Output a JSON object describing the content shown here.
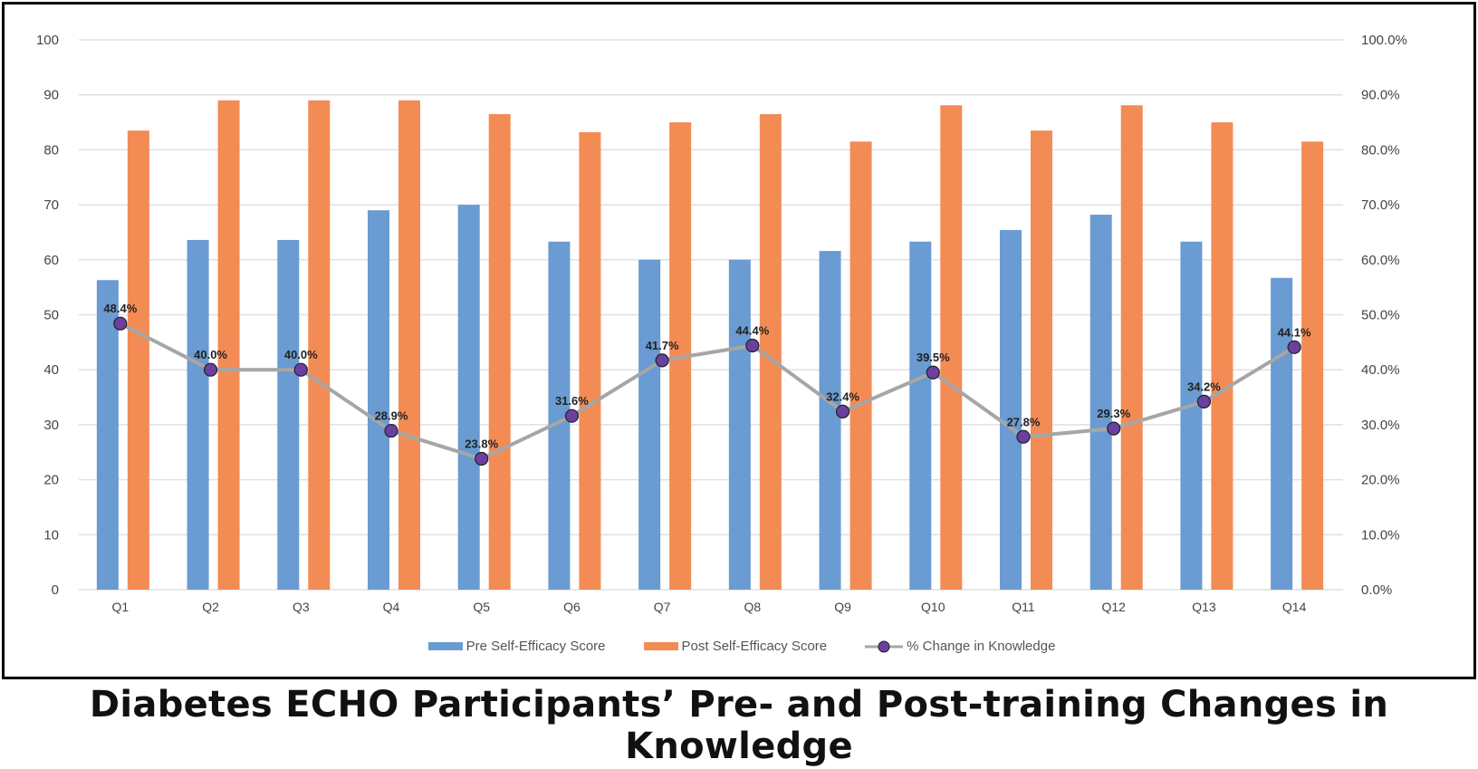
{
  "chart_data": {
    "type": "bar",
    "title": "Diabetes ECHO Participants’ Pre- and Post-training Changes in Knowledge",
    "categories": [
      "Q1",
      "Q2",
      "Q3",
      "Q4",
      "Q5",
      "Q6",
      "Q7",
      "Q8",
      "Q9",
      "Q10",
      "Q11",
      "Q12",
      "Q13",
      "Q14"
    ],
    "series": [
      {
        "name": "Pre Self-Efficacy Score",
        "type": "bar",
        "axis": "left",
        "color": "#6a9bd2",
        "values": [
          56.3,
          63.6,
          63.6,
          69.0,
          70.0,
          63.3,
          60.0,
          60.0,
          61.6,
          63.3,
          65.4,
          68.2,
          63.3,
          56.7
        ]
      },
      {
        "name": "Post Self-Efficacy Score",
        "type": "bar",
        "axis": "left",
        "color": "#f38b54",
        "values": [
          83.5,
          89.0,
          89.0,
          89.0,
          86.5,
          83.2,
          85.0,
          86.5,
          81.5,
          88.1,
          83.5,
          88.1,
          85.0,
          81.5
        ]
      },
      {
        "name": "% Change in Knowledge",
        "type": "line",
        "axis": "right",
        "color": "#a6a6a6",
        "marker_color": "#6b3fa0",
        "values": [
          48.4,
          40.0,
          40.0,
          28.9,
          23.8,
          31.6,
          41.7,
          44.4,
          32.4,
          39.5,
          27.8,
          29.3,
          34.2,
          44.1
        ],
        "labels": [
          "48.4%",
          "40.0%",
          "40.0%",
          "28.9%",
          "23.8%",
          "31.6%",
          "41.7%",
          "44.4%",
          "32.4%",
          "39.5%",
          "27.8%",
          "29.3%",
          "34.2%",
          "44.1%"
        ]
      }
    ],
    "ylim": [
      0,
      100
    ],
    "y_ticks": [
      "0",
      "10",
      "20",
      "30",
      "40",
      "50",
      "60",
      "70",
      "80",
      "90",
      "100"
    ],
    "y2lim": [
      0,
      100
    ],
    "y2_ticks": [
      "0.0%",
      "10.0%",
      "20.0%",
      "30.0%",
      "40.0%",
      "50.0%",
      "60.0%",
      "70.0%",
      "80.0%",
      "90.0%",
      "100.0%"
    ],
    "xlabel": "",
    "ylabel": "",
    "grid": true,
    "legend_position": "bottom"
  }
}
